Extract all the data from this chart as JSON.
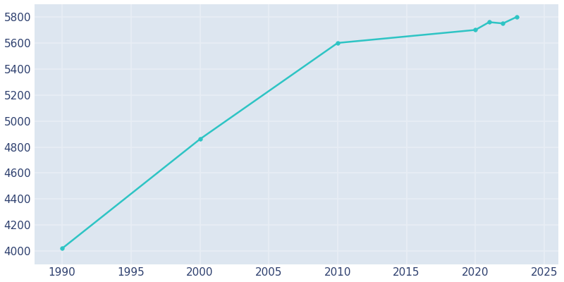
{
  "years": [
    1990,
    2000,
    2010,
    2020,
    2021,
    2022,
    2023
  ],
  "population": [
    4020,
    4860,
    5600,
    5700,
    5760,
    5750,
    5800
  ],
  "line_color": "#2ec4c4",
  "marker_style": "o",
  "marker_size": 4,
  "line_width": 1.8,
  "figure_background_color": "#ffffff",
  "plot_background_color": "#dde6f0",
  "grid_color": "#e8eef5",
  "tick_color": "#2d3f6e",
  "tick_fontsize": 11,
  "xlim": [
    1988,
    2026
  ],
  "ylim": [
    3900,
    5900
  ],
  "xticks": [
    1990,
    1995,
    2000,
    2005,
    2010,
    2015,
    2020,
    2025
  ],
  "yticks": [
    4000,
    4200,
    4400,
    4600,
    4800,
    5000,
    5200,
    5400,
    5600,
    5800
  ]
}
